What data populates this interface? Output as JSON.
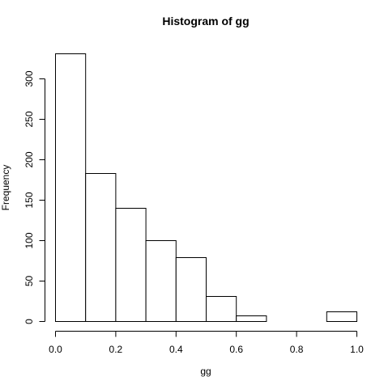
{
  "chart_data": {
    "type": "bar",
    "title": "Histogram of gg",
    "xlabel": "gg",
    "ylabel": "Frequency",
    "bins": [
      {
        "from": 0.0,
        "to": 0.1,
        "count": 331
      },
      {
        "from": 0.1,
        "to": 0.2,
        "count": 183
      },
      {
        "from": 0.2,
        "to": 0.3,
        "count": 140
      },
      {
        "from": 0.3,
        "to": 0.4,
        "count": 100
      },
      {
        "from": 0.4,
        "to": 0.5,
        "count": 79
      },
      {
        "from": 0.5,
        "to": 0.6,
        "count": 31
      },
      {
        "from": 0.6,
        "to": 0.7,
        "count": 7
      },
      {
        "from": 0.7,
        "to": 0.8,
        "count": 0
      },
      {
        "from": 0.8,
        "to": 0.9,
        "count": 0
      },
      {
        "from": 0.9,
        "to": 1.0,
        "count": 12
      }
    ],
    "xlim": [
      0.0,
      1.0
    ],
    "ylim": [
      0,
      331
    ],
    "x_ticks": [
      "0.0",
      "0.2",
      "0.4",
      "0.6",
      "0.8",
      "1.0"
    ],
    "y_ticks": [
      "0",
      "50",
      "100",
      "150",
      "200",
      "250",
      "300"
    ],
    "grid": false
  }
}
